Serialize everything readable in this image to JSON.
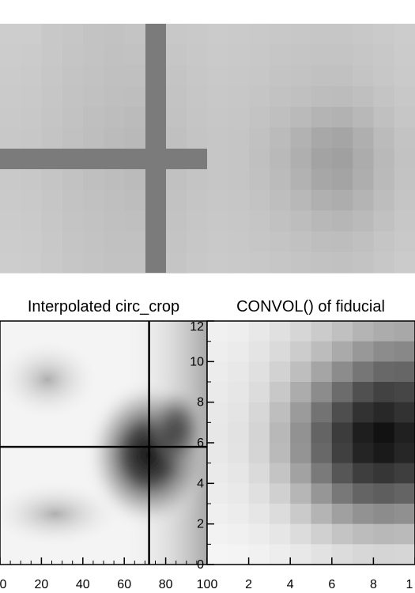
{
  "charts": {
    "top_panel": {
      "type": "heatmap",
      "title": "",
      "crosshair": "cross",
      "pixel_grid": {
        "cols": 20,
        "rows": 12,
        "gray_levels": [
          [
            205,
            205,
            200,
            198,
            195,
            194,
            196,
            198,
            200,
            201,
            203,
            202,
            201,
            200,
            199,
            198,
            198,
            200,
            202,
            204
          ],
          [
            204,
            203,
            200,
            197,
            195,
            193,
            194,
            196,
            198,
            200,
            202,
            201,
            200,
            198,
            197,
            196,
            196,
            198,
            200,
            203
          ],
          [
            203,
            202,
            199,
            196,
            194,
            192,
            192,
            194,
            196,
            199,
            201,
            200,
            199,
            196,
            195,
            193,
            193,
            196,
            199,
            202
          ],
          [
            202,
            201,
            198,
            195,
            193,
            191,
            190,
            192,
            195,
            198,
            200,
            199,
            197,
            194,
            192,
            189,
            188,
            191,
            196,
            200
          ],
          [
            201,
            200,
            197,
            194,
            191,
            189,
            187,
            190,
            194,
            197,
            199,
            198,
            195,
            191,
            186,
            180,
            178,
            184,
            192,
            198
          ],
          [
            200,
            199,
            196,
            193,
            190,
            187,
            185,
            188,
            192,
            196,
            198,
            197,
            193,
            187,
            178,
            168,
            165,
            175,
            187,
            195
          ],
          [
            200,
            199,
            196,
            193,
            190,
            187,
            185,
            188,
            192,
            196,
            198,
            197,
            192,
            185,
            175,
            163,
            160,
            172,
            185,
            194
          ],
          [
            201,
            200,
            197,
            194,
            191,
            189,
            187,
            190,
            193,
            196,
            198,
            197,
            193,
            187,
            178,
            167,
            164,
            174,
            186,
            195
          ],
          [
            202,
            201,
            198,
            195,
            193,
            191,
            189,
            191,
            194,
            197,
            199,
            198,
            195,
            190,
            184,
            176,
            173,
            180,
            189,
            197
          ],
          [
            203,
            202,
            199,
            196,
            194,
            192,
            191,
            193,
            195,
            198,
            200,
            199,
            197,
            193,
            189,
            184,
            182,
            186,
            193,
            199
          ],
          [
            204,
            203,
            200,
            197,
            195,
            193,
            193,
            194,
            196,
            199,
            201,
            200,
            198,
            196,
            193,
            190,
            189,
            192,
            197,
            201
          ],
          [
            205,
            204,
            201,
            198,
            196,
            194,
            194,
            195,
            197,
            200,
            202,
            201,
            200,
            198,
            196,
            194,
            193,
            195,
            199,
            203
          ]
        ]
      }
    },
    "bottom_left": {
      "type": "heatmap",
      "title": "Interpolated circ_crop",
      "x_ticks": [
        "0",
        "20",
        "40",
        "60",
        "80",
        "100"
      ],
      "xlim": [
        0,
        100
      ],
      "crosshair": {
        "x": 72,
        "y": 5.8
      }
    },
    "bottom_right": {
      "type": "heatmap",
      "title": "CONVOL() of fiducial",
      "x_ticks": [
        "2",
        "4",
        "6",
        "8",
        "1"
      ],
      "y_ticks": [
        "0",
        "2",
        "4",
        "6",
        "8",
        "10",
        "12"
      ],
      "xlim": [
        0,
        10
      ],
      "ylim": [
        0,
        12
      ],
      "pixel_grid": {
        "cols": 10,
        "rows": 12,
        "gray_levels": [
          [
            240,
            238,
            232,
            224,
            214,
            203,
            192,
            180,
            172,
            168
          ],
          [
            238,
            235,
            228,
            218,
            204,
            188,
            170,
            152,
            140,
            136
          ],
          [
            236,
            232,
            224,
            210,
            190,
            165,
            140,
            118,
            104,
            102
          ],
          [
            234,
            230,
            220,
            200,
            172,
            140,
            108,
            80,
            66,
            70
          ],
          [
            232,
            228,
            215,
            190,
            155,
            115,
            78,
            50,
            40,
            50
          ],
          [
            231,
            226,
            212,
            184,
            146,
            100,
            60,
            30,
            18,
            32
          ],
          [
            232,
            227,
            213,
            186,
            148,
            104,
            64,
            36,
            26,
            38
          ],
          [
            234,
            230,
            218,
            196,
            162,
            122,
            86,
            62,
            54,
            62
          ],
          [
            236,
            233,
            224,
            208,
            182,
            150,
            120,
            100,
            94,
            100
          ],
          [
            239,
            236,
            230,
            220,
            202,
            180,
            160,
            146,
            140,
            144
          ],
          [
            242,
            240,
            236,
            230,
            220,
            208,
            196,
            188,
            184,
            186
          ],
          [
            245,
            244,
            241,
            237,
            232,
            226,
            220,
            215,
            213,
            214
          ]
        ]
      }
    }
  }
}
